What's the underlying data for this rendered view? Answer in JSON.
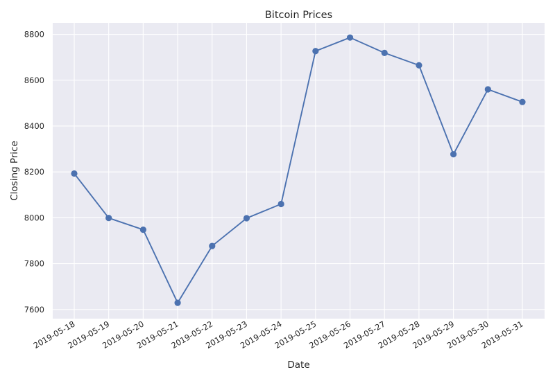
{
  "chart_data": {
    "type": "line",
    "title": "Bitcoin Prices",
    "xlabel": "Date",
    "ylabel": "Closing Price",
    "x": [
      "2019-05-18",
      "2019-05-19",
      "2019-05-20",
      "2019-05-21",
      "2019-05-22",
      "2019-05-23",
      "2019-05-24",
      "2019-05-25",
      "2019-05-26",
      "2019-05-27",
      "2019-05-28",
      "2019-05-29",
      "2019-05-30",
      "2019-05-31"
    ],
    "series": [
      {
        "values": [
          8193,
          7999,
          7948,
          7629,
          7877,
          7998,
          8060,
          8727,
          8786,
          8719,
          8665,
          8277,
          8560,
          8505
        ],
        "color": "#4c72b0",
        "marker": "circle"
      }
    ],
    "ylim": [
      7560,
      8850
    ],
    "yticks": [
      7600,
      7800,
      8000,
      8200,
      8400,
      8600,
      8800
    ],
    "grid": true,
    "legend": "none",
    "background_color": "#eaeaf2",
    "grid_color": "#ffffff"
  }
}
